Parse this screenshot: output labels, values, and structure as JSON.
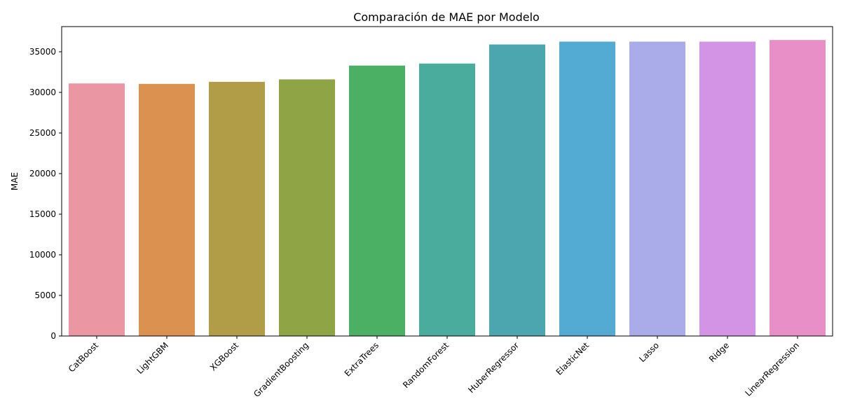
{
  "chart_data": {
    "type": "bar",
    "title": "Comparación de MAE por Modelo",
    "xlabel": "",
    "ylabel": "MAE",
    "categories": [
      "CatBoost",
      "LightGBM",
      "XGBoost",
      "GradientBoosting",
      "ExtraTrees",
      "RandomForest",
      "HuberRegressor",
      "ElasticNet",
      "Lasso",
      "Ridge",
      "LinearRegression"
    ],
    "values": [
      31100,
      31050,
      31300,
      31600,
      33300,
      33550,
      35900,
      36250,
      36250,
      36250,
      36450
    ],
    "colors": [
      "#ea96a3",
      "#db914f",
      "#b19d48",
      "#8ea445",
      "#4bb064",
      "#4aac9c",
      "#4ca6b0",
      "#53abd4",
      "#a9ace9",
      "#d494e6",
      "#e88fc8"
    ],
    "yticks": [
      0,
      5000,
      10000,
      15000,
      20000,
      25000,
      30000,
      35000
    ],
    "ylim": [
      0,
      38100
    ],
    "grid": false,
    "legend": "none"
  }
}
